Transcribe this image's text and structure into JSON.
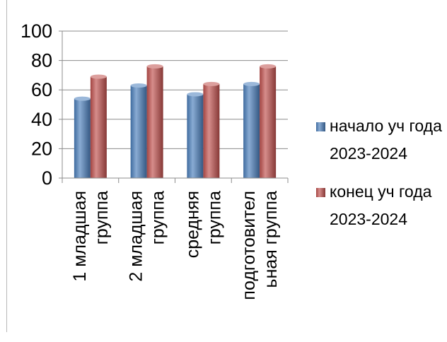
{
  "chart_data": {
    "type": "bar",
    "style": "3d-cylinder-like clustered bar",
    "categories": [
      [
        "1 младшая",
        "группа"
      ],
      [
        "2 младшая",
        "группа"
      ],
      [
        "средняя",
        "группа"
      ],
      [
        "подготовител",
        "ьная группа"
      ]
    ],
    "series": [
      {
        "name_lines": [
          "начало уч года",
          "2023-2024"
        ],
        "values": [
          54,
          63,
          57,
          64
        ],
        "color": "#4a7ebb"
      },
      {
        "name_lines": [
          "конец уч года",
          "2023-2024"
        ],
        "values": [
          69,
          76,
          64,
          76
        ],
        "color": "#c0504d"
      }
    ],
    "ylim": [
      0,
      100
    ],
    "yticks": [
      0,
      20,
      40,
      60,
      80,
      100
    ],
    "grid": true,
    "legend": "right"
  }
}
